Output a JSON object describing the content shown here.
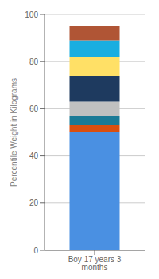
{
  "chart_data": {
    "type": "bar",
    "categories": [
      "Boy 17 years 3 months"
    ],
    "series": [
      {
        "values": [
          50
        ],
        "color": "#4A90E2"
      },
      {
        "values": [
          3
        ],
        "color": "#D94F10"
      },
      {
        "values": [
          4
        ],
        "color": "#1B7A96"
      },
      {
        "values": [
          6
        ],
        "color": "#C0C0C0"
      },
      {
        "values": [
          11
        ],
        "color": "#1E3A5F"
      },
      {
        "values": [
          8
        ],
        "color": "#FFE066"
      },
      {
        "values": [
          7
        ],
        "color": "#1AAEE0"
      },
      {
        "values": [
          6
        ],
        "color": "#B05535"
      }
    ],
    "stacked": true,
    "ylabel": "Percentile Weight in Kilograms",
    "ylim": [
      0,
      100
    ],
    "yticks": [
      0,
      20,
      40,
      60,
      80,
      100
    ],
    "grid": true
  }
}
